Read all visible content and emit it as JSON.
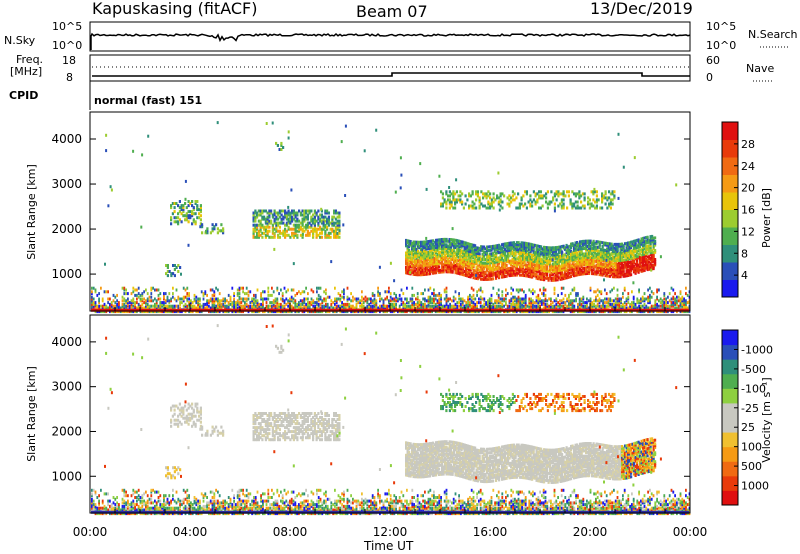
{
  "header": {
    "station": "Kapuskasing (fitACF)",
    "beam": "Beam 07",
    "date": "13/Dec/2019"
  },
  "status_panels": {
    "nsky_label": "N.Sky",
    "nsky_ticks": [
      "10^5",
      "10^0"
    ],
    "nsearch_label": "N.Search",
    "nsearch_ticks": [
      "10^5",
      "10^0"
    ],
    "freq_label_1": "Freq.",
    "freq_label_2": "[MHz]",
    "freq_ticks": [
      "18",
      "8"
    ],
    "nave_label": "Nave",
    "nave_ticks": [
      "60",
      "0"
    ],
    "cpid_label": "CPID",
    "cpid_text": "normal (fast) 151"
  },
  "chart_data": [
    {
      "type": "heatmap",
      "name": "power",
      "ylabel": "Slant Range [km]",
      "yticks": [
        1000,
        2000,
        3000,
        4000
      ],
      "ylim": [
        180,
        4600
      ],
      "xlim_hours": [
        0,
        24
      ],
      "colorbar_label": "Power [dB]",
      "colorbar_ticks": [
        "4",
        "8",
        "12",
        "16",
        "20",
        "24",
        "28"
      ],
      "colorbar_colors": [
        "#1a1aee",
        "#2a4fb8",
        "#2f8f7a",
        "#4fae4f",
        "#9ccc30",
        "#e8c40a",
        "#f59a14",
        "#f06a12",
        "#e83a0a",
        "#e01010"
      ]
    },
    {
      "type": "heatmap",
      "name": "velocity",
      "ylabel": "Slant Range [km]",
      "yticks": [
        1000,
        2000,
        3000,
        4000
      ],
      "ylim": [
        180,
        4600
      ],
      "xlim_hours": [
        0,
        24
      ],
      "xlabel": "Time UT",
      "xticks": [
        "00:00",
        "04:00",
        "08:00",
        "12:00",
        "16:00",
        "20:00",
        "00:00"
      ],
      "colorbar_label": "Velocity [m s⁻¹]",
      "colorbar_ticks": [
        "1000",
        "500",
        "100",
        "25",
        "-25",
        "-100",
        "-500",
        "-1000"
      ],
      "colorbar_colors": [
        "#1a1aee",
        "#2a4fb8",
        "#2f8f7a",
        "#4fae4f",
        "#8ed040",
        "#c8c8c0",
        "#c8c8c0",
        "#f0c030",
        "#f59a14",
        "#f06a12",
        "#e83a0a",
        "#e01010"
      ]
    }
  ]
}
